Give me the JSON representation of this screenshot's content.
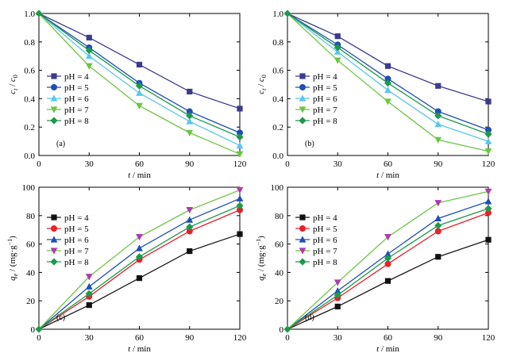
{
  "figure": {
    "background": "#ffffff"
  },
  "series_styles": {
    "ab": [
      {
        "color": "#3b3b8f",
        "marker": "square"
      },
      {
        "color": "#1f4fb4",
        "marker": "circle"
      },
      {
        "color": "#59c7ee",
        "marker": "triangle-up"
      },
      {
        "color": "#6cc641",
        "marker": "triangle-down"
      },
      {
        "color": "#1c9a4b",
        "marker": "diamond"
      }
    ],
    "cd": [
      {
        "color": "#111111",
        "marker": "square"
      },
      {
        "color": "#e8202a",
        "marker": "circle"
      },
      {
        "color": "#1f4fb4",
        "marker": "triangle-up"
      },
      {
        "color": "#b03ab0",
        "marker": "triangle-down"
      },
      {
        "color": "#1c9a4b",
        "marker": "diamond"
      }
    ],
    "line_colors": {
      "cd": [
        "#1a1a1a",
        "#e8202a",
        "#1f4fb4",
        "#6cc641",
        "#1c9a4b"
      ]
    }
  },
  "chart_data": [
    {
      "panel": "(a)",
      "type": "line",
      "xlabel": "t / min",
      "ylabel": "ct / c0",
      "ylim": [
        0.0,
        1.0
      ],
      "yticks": [
        "0.0",
        "0.2",
        "0.4",
        "0.6",
        "0.8",
        "1.0"
      ],
      "xlim": [
        0,
        120
      ],
      "xticks": [
        "0",
        "30",
        "60",
        "90",
        "120"
      ],
      "legend_position": "left-middle",
      "x": [
        0,
        30,
        60,
        90,
        120
      ],
      "series": [
        {
          "name": "pH = 4",
          "values": [
            1.0,
            0.83,
            0.64,
            0.45,
            0.33
          ]
        },
        {
          "name": "pH = 5",
          "values": [
            1.0,
            0.76,
            0.51,
            0.31,
            0.16
          ]
        },
        {
          "name": "pH = 6",
          "values": [
            1.0,
            0.7,
            0.44,
            0.24,
            0.07
          ]
        },
        {
          "name": "pH = 7",
          "values": [
            1.0,
            0.63,
            0.35,
            0.16,
            0.01
          ]
        },
        {
          "name": "pH = 8",
          "values": [
            1.0,
            0.74,
            0.49,
            0.28,
            0.13
          ]
        }
      ]
    },
    {
      "panel": "(b)",
      "type": "line",
      "xlabel": "t / min",
      "ylabel": "ct / c0",
      "ylim": [
        0.0,
        1.0
      ],
      "yticks": [
        "0.0",
        "0.2",
        "0.4",
        "0.6",
        "0.8",
        "1.0"
      ],
      "xlim": [
        0,
        120
      ],
      "xticks": [
        "0",
        "30",
        "60",
        "90",
        "120"
      ],
      "legend_position": "right-middle",
      "x": [
        0,
        30,
        60,
        90,
        120
      ],
      "series": [
        {
          "name": "pH = 4",
          "values": [
            1.0,
            0.84,
            0.63,
            0.49,
            0.38
          ]
        },
        {
          "name": "pH = 5",
          "values": [
            1.0,
            0.78,
            0.54,
            0.31,
            0.18
          ]
        },
        {
          "name": "pH = 6",
          "values": [
            1.0,
            0.73,
            0.46,
            0.22,
            0.1
          ]
        },
        {
          "name": "pH = 7",
          "values": [
            1.0,
            0.67,
            0.38,
            0.11,
            0.03
          ]
        },
        {
          "name": "pH = 8",
          "values": [
            1.0,
            0.76,
            0.51,
            0.28,
            0.15
          ]
        }
      ]
    },
    {
      "panel": "(c)",
      "type": "line",
      "xlabel": "t / min",
      "ylabel": "qe / (mg·g⁻¹)",
      "ylim": [
        0,
        100
      ],
      "yticks": [
        "0",
        "20",
        "40",
        "60",
        "80",
        "100"
      ],
      "xlim": [
        0,
        120
      ],
      "xticks": [
        "0",
        "30",
        "60",
        "90",
        "120"
      ],
      "legend_position": "left-middle",
      "x": [
        0,
        30,
        60,
        90,
        120
      ],
      "series": [
        {
          "name": "pH = 4",
          "values": [
            0,
            17,
            36,
            55,
            67
          ]
        },
        {
          "name": "pH = 5",
          "values": [
            0,
            23,
            49,
            69,
            84
          ]
        },
        {
          "name": "pH = 6",
          "values": [
            0,
            30,
            57,
            77,
            92
          ]
        },
        {
          "name": "pH = 7",
          "values": [
            0,
            37,
            65,
            84,
            98
          ]
        },
        {
          "name": "pH = 8",
          "values": [
            0,
            25,
            51,
            72,
            87
          ]
        }
      ]
    },
    {
      "panel": "(d)",
      "type": "line",
      "xlabel": "t / min",
      "ylabel": "qe / (mg·g⁻¹)",
      "ylim": [
        0,
        100
      ],
      "yticks": [
        "0",
        "20",
        "40",
        "60",
        "80",
        "100"
      ],
      "xlim": [
        0,
        120
      ],
      "xticks": [
        "0",
        "30",
        "60",
        "90",
        "120"
      ],
      "legend_position": "right-middle",
      "x": [
        0,
        30,
        60,
        90,
        120
      ],
      "series": [
        {
          "name": "pH = 4",
          "values": [
            0,
            16,
            34,
            51,
            63
          ]
        },
        {
          "name": "pH = 5",
          "values": [
            0,
            22,
            46,
            69,
            82
          ]
        },
        {
          "name": "pH = 6",
          "values": [
            0,
            27,
            53,
            78,
            90
          ]
        },
        {
          "name": "pH = 7",
          "values": [
            0,
            33,
            65,
            89,
            97
          ]
        },
        {
          "name": "pH = 8",
          "values": [
            0,
            24,
            50,
            73,
            85
          ]
        }
      ]
    }
  ]
}
